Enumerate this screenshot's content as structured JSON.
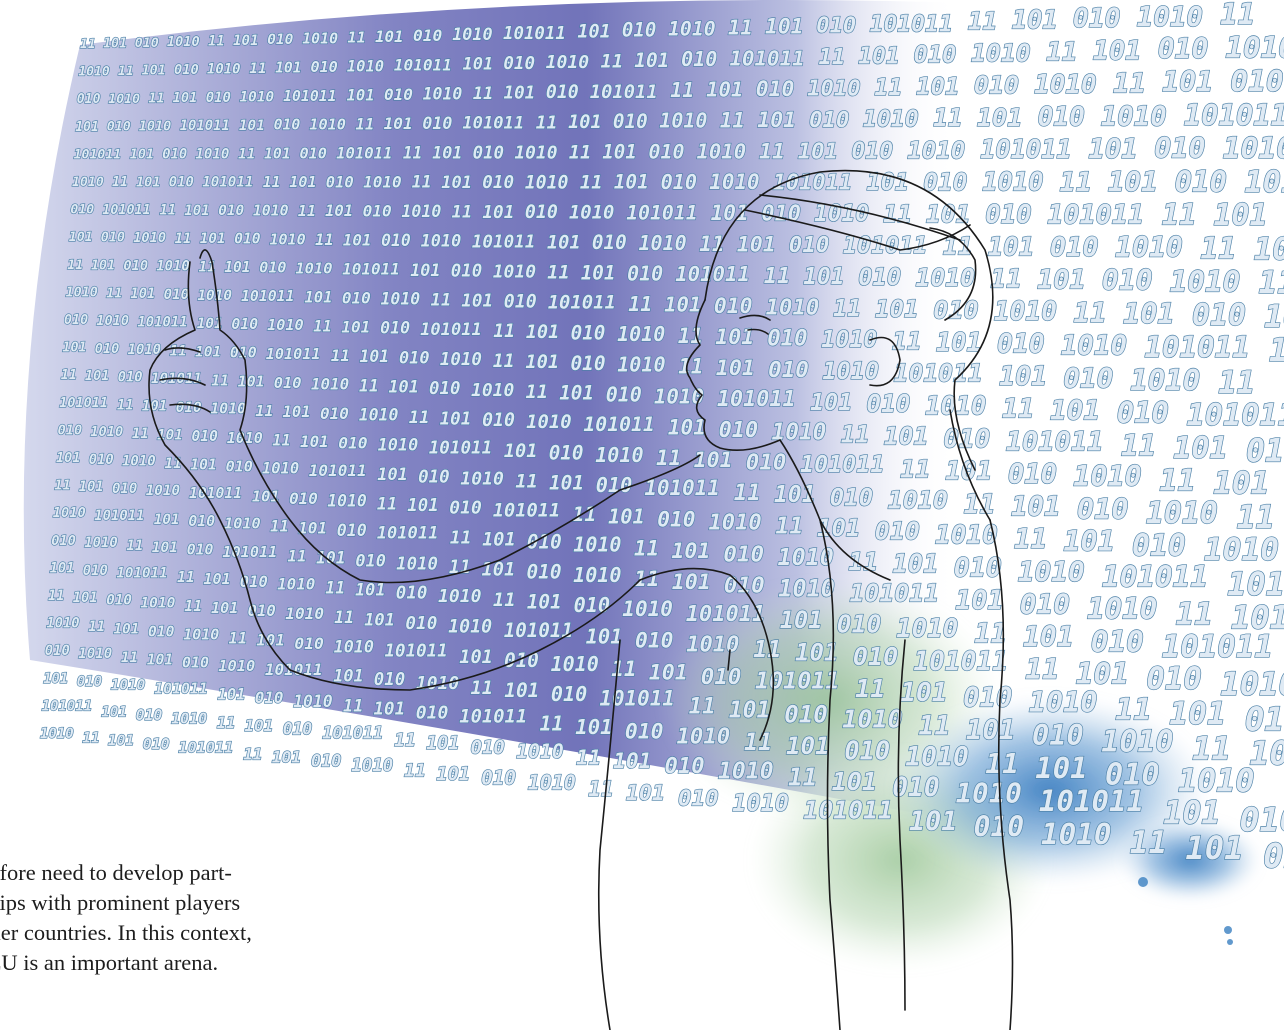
{
  "illustration": {
    "binary_sequence": [
      "11",
      "101",
      "010",
      "1010",
      "11",
      "101",
      "010",
      "1010",
      "11",
      "101",
      "010",
      "1010",
      "101011",
      "101",
      "010",
      "1010",
      "11",
      "101",
      "010",
      "101011"
    ],
    "colors": {
      "screen_gradient_left": "#c3c8e6",
      "screen_gradient_mid": "#6f71ba",
      "screen_gradient_right": "#ffffff",
      "digit_outline": "#4a7fa6",
      "digit_fill": "#dfeaf4",
      "splash_green": "#8fbf8a",
      "splash_blue": "#3a7fc0",
      "line_art": "#1a1a1a"
    }
  },
  "text_block": {
    "line1": "erefore need to develop part-",
    "line2": "rships with prominent players",
    "line3": " other countries. In this context,",
    "line4": "e EU is an important arena."
  }
}
